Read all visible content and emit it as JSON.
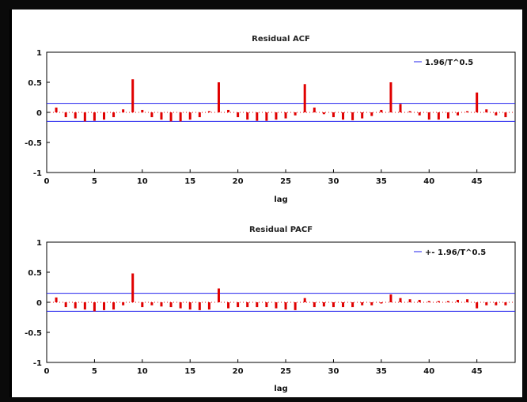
{
  "chart_data": [
    {
      "type": "bar",
      "title": "Residual ACF",
      "xlabel": "lag",
      "ylabel": "",
      "xlim": [
        0,
        49
      ],
      "ylim": [
        -1,
        1
      ],
      "x_ticks": [
        0,
        5,
        10,
        15,
        20,
        25,
        30,
        35,
        40,
        45
      ],
      "y_ticks": [
        1,
        0.5,
        0,
        -0.5,
        -1
      ],
      "y_tick_labels": [
        "1",
        "0.5",
        "0",
        "-0.5",
        "-1"
      ],
      "x": [
        1,
        2,
        3,
        4,
        5,
        6,
        7,
        8,
        9,
        10,
        11,
        12,
        13,
        14,
        15,
        16,
        17,
        18,
        19,
        20,
        21,
        22,
        23,
        24,
        25,
        26,
        27,
        28,
        29,
        30,
        31,
        32,
        33,
        34,
        35,
        36,
        37,
        38,
        39,
        40,
        41,
        42,
        43,
        44,
        45,
        46,
        47,
        48
      ],
      "values": [
        0.08,
        -0.08,
        -0.1,
        -0.15,
        -0.14,
        -0.12,
        -0.08,
        0.05,
        0.55,
        0.04,
        -0.08,
        -0.12,
        -0.15,
        -0.15,
        -0.12,
        -0.08,
        0.02,
        0.5,
        0.04,
        -0.08,
        -0.12,
        -0.14,
        -0.14,
        -0.12,
        -0.1,
        -0.05,
        0.47,
        0.08,
        -0.03,
        -0.08,
        -0.12,
        -0.13,
        -0.1,
        -0.06,
        0.04,
        0.5,
        0.14,
        0.02,
        -0.05,
        -0.12,
        -0.12,
        -0.1,
        -0.05,
        0.02,
        0.33,
        0.05,
        -0.05,
        -0.08
      ],
      "conf_band": 0.15,
      "legend": "1.96/T^0.5",
      "legend_position": "top-right",
      "bar_color": "#e00000",
      "band_color": "#2222ee"
    },
    {
      "type": "bar",
      "title": "Residual PACF",
      "xlabel": "lag",
      "ylabel": "",
      "xlim": [
        0,
        49
      ],
      "ylim": [
        -1,
        1
      ],
      "x_ticks": [
        0,
        5,
        10,
        15,
        20,
        25,
        30,
        35,
        40,
        45
      ],
      "y_ticks": [
        1,
        0.5,
        0,
        -0.5,
        -1
      ],
      "y_tick_labels": [
        "1",
        "0.5",
        "0",
        "-0.5",
        "-1"
      ],
      "x": [
        1,
        2,
        3,
        4,
        5,
        6,
        7,
        8,
        9,
        10,
        11,
        12,
        13,
        14,
        15,
        16,
        17,
        18,
        19,
        20,
        21,
        22,
        23,
        24,
        25,
        26,
        27,
        28,
        29,
        30,
        31,
        32,
        33,
        34,
        35,
        36,
        37,
        38,
        39,
        40,
        41,
        42,
        43,
        44,
        45,
        46,
        47,
        48
      ],
      "values": [
        0.08,
        -0.08,
        -0.1,
        -0.12,
        -0.15,
        -0.13,
        -0.12,
        -0.05,
        0.48,
        -0.08,
        -0.05,
        -0.07,
        -0.08,
        -0.1,
        -0.12,
        -0.13,
        -0.12,
        0.23,
        -0.1,
        -0.08,
        -0.08,
        -0.08,
        -0.08,
        -0.1,
        -0.12,
        -0.13,
        0.07,
        -0.08,
        -0.07,
        -0.08,
        -0.08,
        -0.08,
        -0.05,
        -0.05,
        -0.02,
        0.13,
        0.07,
        0.05,
        0.04,
        0.02,
        0.02,
        0.02,
        0.04,
        0.05,
        -0.1,
        -0.05,
        -0.05,
        -0.05
      ],
      "conf_band": 0.15,
      "legend": "+- 1.96/T^0.5",
      "legend_position": "top-right",
      "bar_color": "#e00000",
      "band_color": "#2222ee"
    }
  ]
}
